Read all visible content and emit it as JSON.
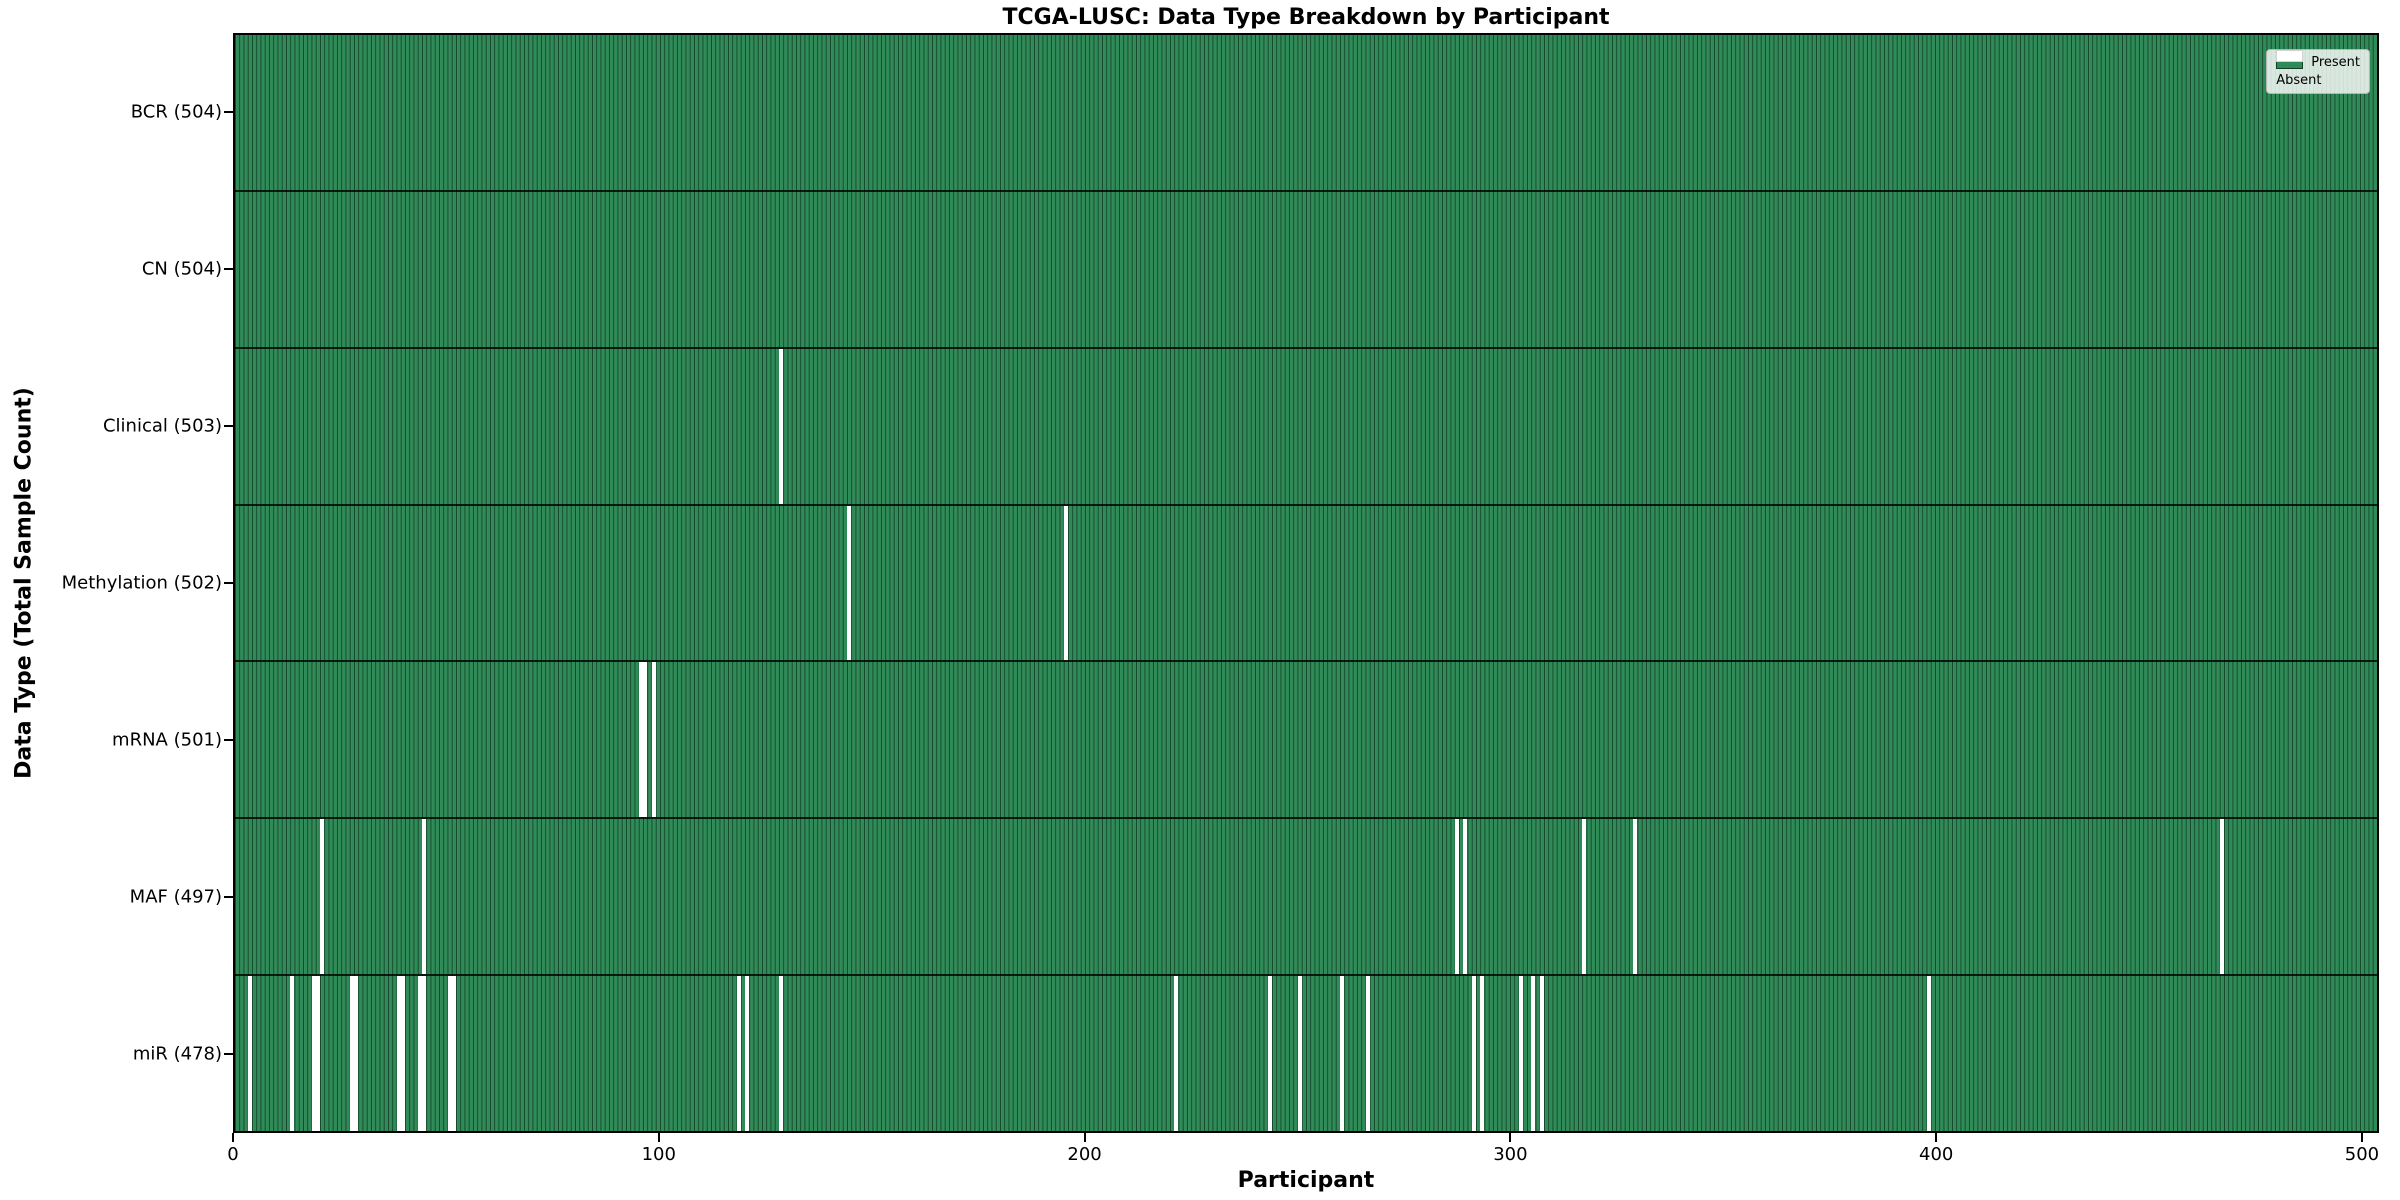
{
  "chart_data": {
    "type": "heatmap",
    "title": "TCGA-LUSC: Data Type Breakdown by Participant",
    "xlabel": "Participant",
    "ylabel": "Data Type (Total Sample Count)",
    "total_participants": 504,
    "x_ticks": [
      0,
      100,
      200,
      300,
      400,
      500
    ],
    "x_range": [
      0,
      504
    ],
    "grid": false,
    "legend_position": "upper right",
    "legend": [
      {
        "label": "Present",
        "color": "#2e8b57"
      },
      {
        "label": "Absent",
        "color": "#ffffff"
      }
    ],
    "colors": {
      "present": "#2e8b57",
      "absent": "#ffffff",
      "bar_edge": "rgba(0,0,0,0.5)"
    },
    "rows": [
      {
        "data_type": "BCR",
        "label": "BCR (504)",
        "present_count": 504,
        "absent_participants": []
      },
      {
        "data_type": "CN",
        "label": "CN (504)",
        "present_count": 504,
        "absent_participants": []
      },
      {
        "data_type": "Clinical",
        "label": "Clinical (503)",
        "present_count": 503,
        "absent_participants": [
          128
        ]
      },
      {
        "data_type": "Methylation",
        "label": "Methylation (502)",
        "present_count": 502,
        "absent_participants": [
          144,
          195
        ]
      },
      {
        "data_type": "mRNA",
        "label": "mRNA (501)",
        "present_count": 501,
        "absent_participants": [
          95,
          96,
          98
        ]
      },
      {
        "data_type": "MAF",
        "label": "MAF (497)",
        "present_count": 497,
        "absent_participants": [
          20,
          44,
          287,
          289,
          317,
          329,
          467
        ]
      },
      {
        "data_type": "miR",
        "label": "miR (478)",
        "present_count": 478,
        "absent_participants": [
          3,
          13,
          18,
          19,
          27,
          28,
          38,
          39,
          43,
          44,
          50,
          51,
          118,
          120,
          128,
          221,
          243,
          250,
          260,
          266,
          291,
          293,
          302,
          305,
          307,
          398
        ]
      }
    ]
  }
}
